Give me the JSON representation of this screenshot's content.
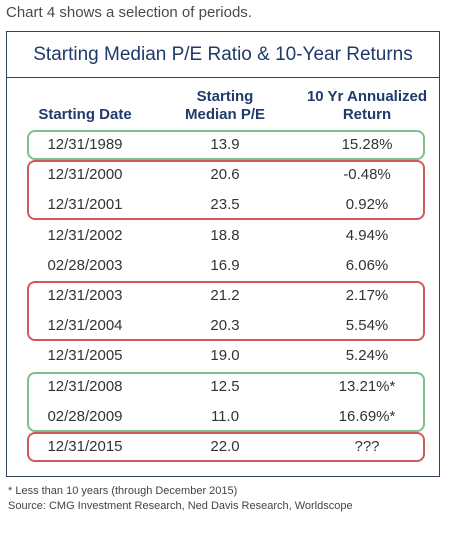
{
  "intro": "Chart 4 shows a selection of periods.",
  "chart_data": {
    "type": "table",
    "title": "Starting Median P/E Ratio & 10-Year Returns",
    "columns": [
      "Starting Date",
      "Starting\nMedian P/E",
      "10 Yr Annualized\nReturn"
    ],
    "rows": [
      {
        "date": "12/31/1989",
        "pe": "13.9",
        "ret": "15.28%"
      },
      {
        "date": "12/31/2000",
        "pe": "20.6",
        "ret": "-0.48%"
      },
      {
        "date": "12/31/2001",
        "pe": "23.5",
        "ret": "0.92%"
      },
      {
        "date": "12/31/2002",
        "pe": "18.8",
        "ret": "4.94%"
      },
      {
        "date": "02/28/2003",
        "pe": "16.9",
        "ret": "6.06%"
      },
      {
        "date": "12/31/2003",
        "pe": "21.2",
        "ret": "2.17%"
      },
      {
        "date": "12/31/2004",
        "pe": "20.3",
        "ret": "5.54%"
      },
      {
        "date": "12/31/2005",
        "pe": "19.0",
        "ret": "5.24%"
      },
      {
        "date": "12/31/2008",
        "pe": "12.5",
        "ret": "13.21%*"
      },
      {
        "date": "02/28/2009",
        "pe": "11.0",
        "ret": "16.69%*"
      },
      {
        "date": "12/31/2015",
        "pe": "22.0",
        "ret": "???"
      }
    ],
    "highlight_groups": [
      {
        "color": "#7fbf8a",
        "rows": [
          0
        ]
      },
      {
        "color": "#cf5a5a",
        "rows": [
          1,
          2
        ]
      },
      {
        "color": "#cf5a5a",
        "rows": [
          5,
          6
        ]
      },
      {
        "color": "#7fbf8a",
        "rows": [
          8,
          9
        ]
      },
      {
        "color": "#cf5a5a",
        "rows": [
          10
        ]
      }
    ]
  },
  "footnotes": [
    "* Less than 10 years (through December 2015)",
    "Source: CMG Investment Research, Ned Davis Research, Worldscope"
  ]
}
